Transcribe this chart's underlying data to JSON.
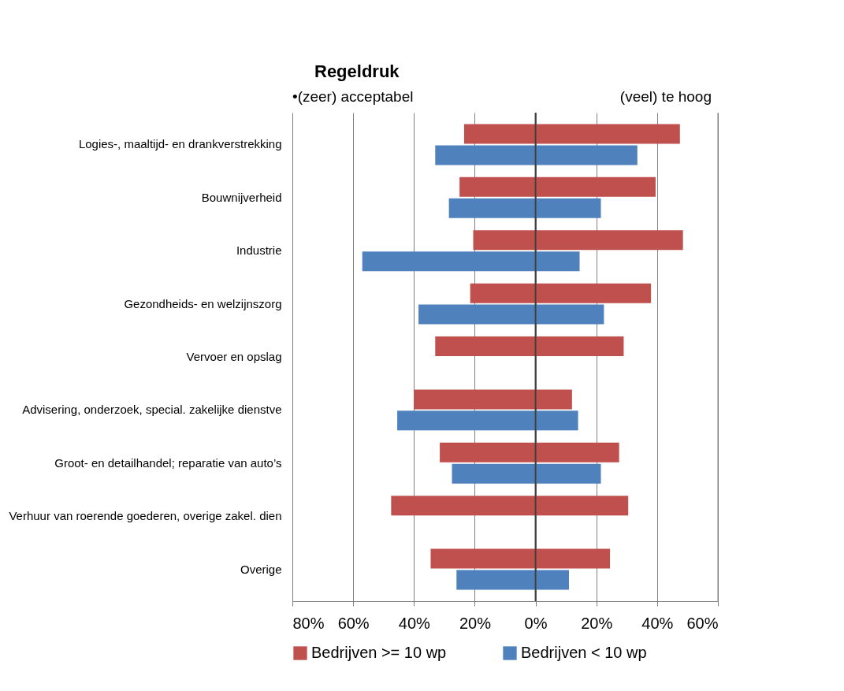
{
  "chart_data": {
    "type": "bar",
    "orientation": "horizontal",
    "title": "Regeldruk",
    "annotations": [
      "•(zeer) acceptabel",
      "(veel) te hoog"
    ],
    "categories": [
      "Logies-, maaltijd- en drankverstrekking",
      "Bouwnijverheid",
      "Industrie",
      "Gezondheids- en welzijnszorg",
      "Vervoer en opslag",
      "Advisering, onderzoek, special. zakelijke dienstve",
      "Groot- en detailhandel; reparatie van auto’s",
      "Verhuur van roerende goederen, overige zakel. dien",
      "Overige"
    ],
    "series": [
      {
        "name": "Bedrijven >= 10 wp",
        "color": "#c0504d",
        "base": [
          -23.5,
          -25,
          -20.5,
          -21.5,
          -33,
          -40,
          -31.5,
          -47.5,
          -34.5
        ],
        "values": [
          71,
          64.5,
          69,
          59.5,
          62,
          52,
          59,
          78,
          59
        ]
      },
      {
        "name": "Bedrijven < 10 wp",
        "color": "#4f81bd",
        "base": [
          -33,
          -28.5,
          -57,
          -38.5,
          null,
          -45.5,
          -27.5,
          null,
          -26
        ],
        "values": [
          66.5,
          50,
          71.5,
          61,
          null,
          59.5,
          49,
          null,
          37
        ]
      }
    ],
    "xlim": [
      -80,
      60
    ],
    "xticks": [
      {
        "value": -80,
        "label": "80%"
      },
      {
        "value": -60,
        "label": "60%"
      },
      {
        "value": -40,
        "label": "40%"
      },
      {
        "value": -20,
        "label": "20%"
      },
      {
        "value": 0,
        "label": "0%"
      },
      {
        "value": 20,
        "label": "20%"
      },
      {
        "value": 40,
        "label": "40%"
      },
      {
        "value": 60,
        "label": "60%"
      }
    ],
    "ref_lines": [
      {
        "axis": "x",
        "value": 0,
        "color": "#404040"
      }
    ],
    "grid": "x",
    "legend": "bottom"
  }
}
